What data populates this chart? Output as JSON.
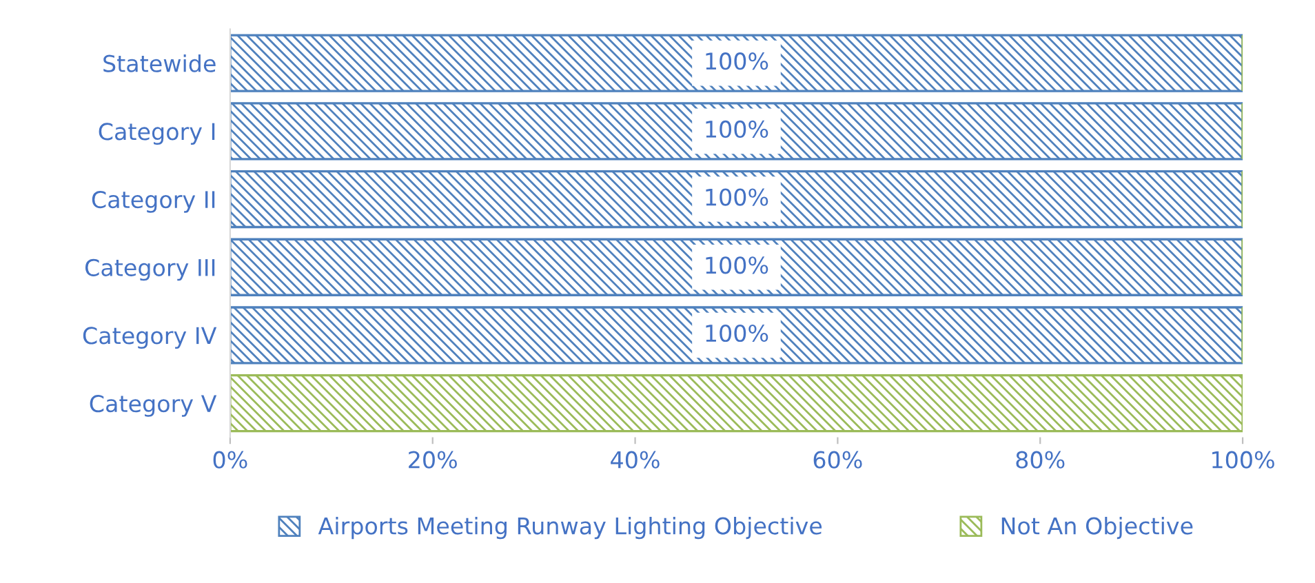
{
  "chart_data": {
    "type": "bar",
    "orientation": "horizontal",
    "stacked": true,
    "categories": [
      "Statewide",
      "Category I",
      "Category II",
      "Category III",
      "Category IV",
      "Category V"
    ],
    "series": [
      {
        "name": "Airports Meeting Runway Lighting Objective",
        "color": "#4f81bd",
        "values": [
          100,
          100,
          100,
          100,
          100,
          0
        ],
        "value_labels": [
          "100%",
          "100%",
          "100%",
          "100%",
          "100%",
          null
        ]
      },
      {
        "name": "Not An Objective",
        "color": "#9bbb59",
        "values": [
          0,
          0,
          0,
          0,
          0,
          100
        ]
      }
    ],
    "xlim": [
      0,
      100
    ],
    "xticks": [
      {
        "value": 0,
        "label": "0%"
      },
      {
        "value": 20,
        "label": "20%"
      },
      {
        "value": 40,
        "label": "40%"
      },
      {
        "value": 60,
        "label": "60%"
      },
      {
        "value": 80,
        "label": "80%"
      },
      {
        "value": 100,
        "label": "100%"
      }
    ],
    "grid": false,
    "legend": "bottom"
  }
}
